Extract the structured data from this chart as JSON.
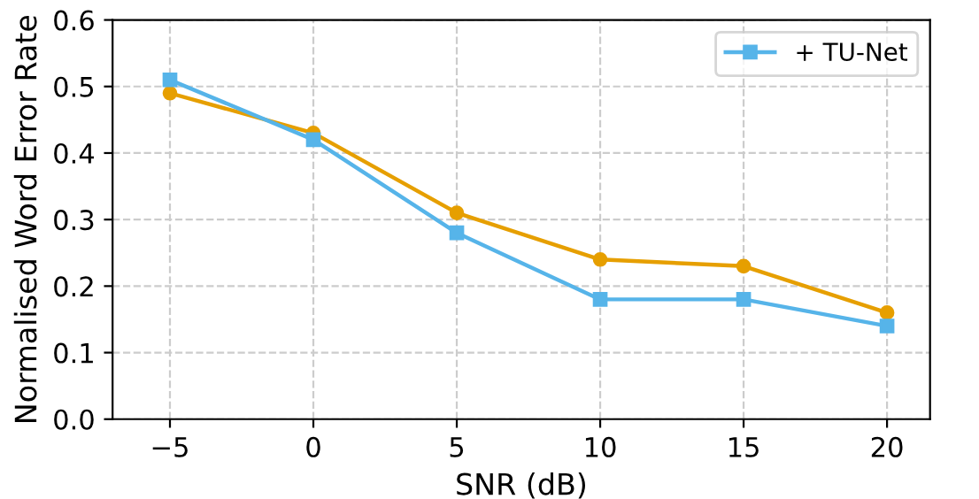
{
  "chart_data": {
    "type": "line",
    "xlabel": "SNR (dB)",
    "ylabel": "Normalised Word Error Rate",
    "x": [
      -5,
      0,
      5,
      10,
      15,
      20
    ],
    "series": [
      {
        "color": "#e69f00",
        "marker": "circle",
        "values": [
          0.49,
          0.43,
          0.31,
          0.24,
          0.23,
          0.16
        ]
      },
      {
        "name": "+ TU-Net",
        "color": "#56b4e9",
        "marker": "square",
        "values": [
          0.51,
          0.42,
          0.28,
          0.18,
          0.18,
          0.14
        ]
      }
    ],
    "xlim": [
      -7,
      21.5
    ],
    "xticks": [
      {
        "value": -5,
        "label": "−5"
      },
      0,
      5,
      10,
      15,
      20
    ],
    "ylim": [
      0,
      0.6
    ],
    "yticks": [
      {
        "value": 0,
        "label": "0.0"
      },
      0.1,
      0.2,
      0.3,
      0.4,
      0.5,
      0.6
    ],
    "grid": true,
    "legend": "top right",
    "line_style": "solid"
  }
}
